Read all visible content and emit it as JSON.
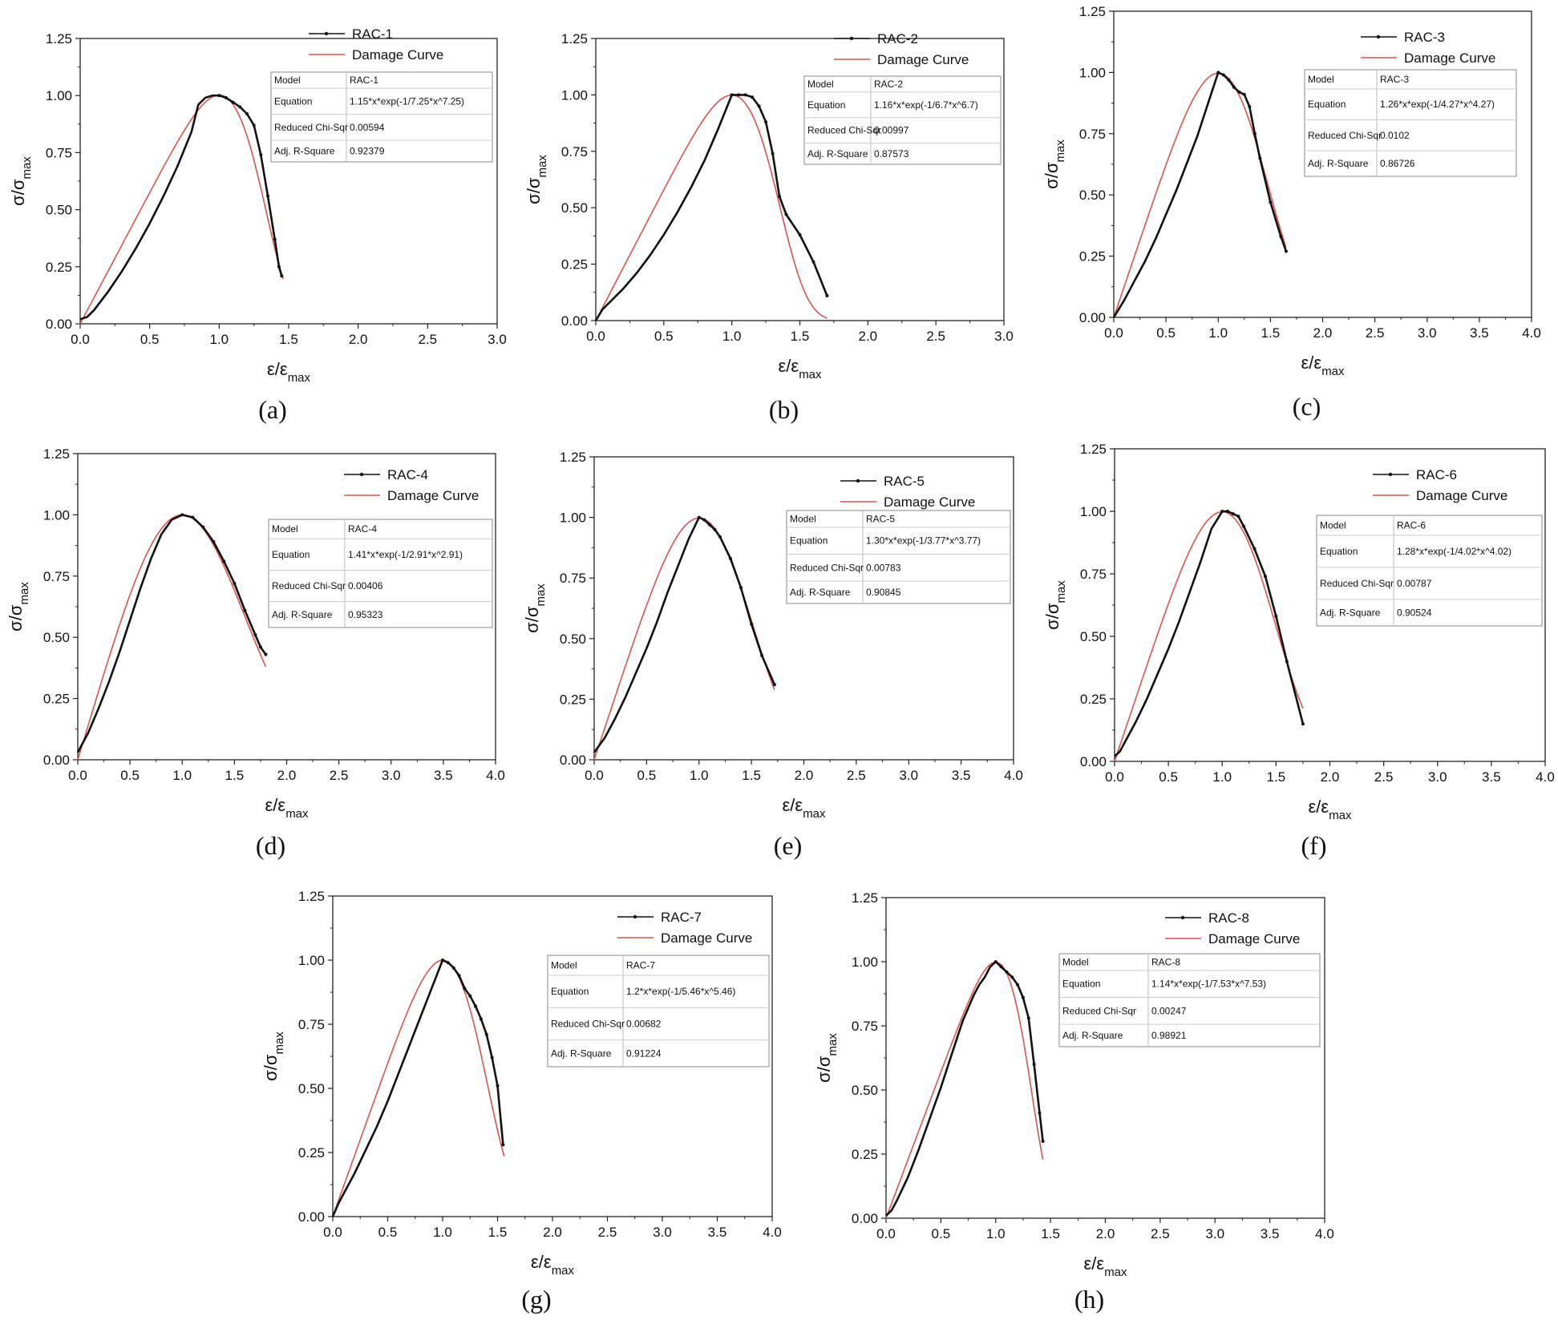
{
  "figure": {
    "x_axis_label": "ε/ε",
    "x_axis_sub": "max",
    "y_axis_label": "σ/σ",
    "y_axis_sub": "max",
    "table_row_labels": [
      "Model",
      "Equation",
      "Reduced Chi-Sqr",
      "Adj. R-Square"
    ],
    "colors": {
      "experimental": "#111111",
      "damage_curve": "#d9534f",
      "frame": "#222222",
      "table_border": "#888888"
    }
  },
  "chart_data": [
    {
      "type": "line",
      "caption": "(a)",
      "xlim": [
        0,
        3.0
      ],
      "xticks": [
        "0.0",
        "0.5",
        "1.0",
        "1.5",
        "2.0",
        "2.5",
        "3.0"
      ],
      "ylim": [
        0,
        1.25
      ],
      "yticks": [
        "0.00",
        "0.25",
        "0.50",
        "0.75",
        "1.00",
        "1.25"
      ],
      "legend": [
        "RAC-1",
        "Damage Curve"
      ],
      "stats": {
        "model": "RAC-1",
        "equation": "1.15*x*exp(-1/7.25*x^7.25)",
        "chi_sqr": "0.00594",
        "r_square": "0.92379"
      },
      "fit": {
        "a": 1.15,
        "b": 7.25,
        "x_max": 1.46
      },
      "series": [
        {
          "name": "RAC-1",
          "x": [
            0,
            0.05,
            0.1,
            0.2,
            0.3,
            0.4,
            0.5,
            0.6,
            0.7,
            0.8,
            0.85,
            0.9,
            0.95,
            1.0,
            1.05,
            1.1,
            1.15,
            1.2,
            1.25,
            1.3,
            1.35,
            1.4,
            1.43,
            1.45
          ],
          "y": [
            0.02,
            0.03,
            0.06,
            0.14,
            0.23,
            0.33,
            0.44,
            0.56,
            0.69,
            0.84,
            0.96,
            0.99,
            1.0,
            1.0,
            0.99,
            0.97,
            0.95,
            0.92,
            0.87,
            0.74,
            0.56,
            0.37,
            0.25,
            0.21
          ]
        }
      ]
    },
    {
      "type": "line",
      "caption": "(b)",
      "xlim": [
        0,
        3.0
      ],
      "xticks": [
        "0.0",
        "0.5",
        "1.0",
        "1.5",
        "2.0",
        "2.5",
        "3.0"
      ],
      "ylim": [
        0,
        1.25
      ],
      "yticks": [
        "0.00",
        "0.25",
        "0.50",
        "0.75",
        "1.00",
        "1.25"
      ],
      "legend": [
        "RAC-2",
        "Damage Curve"
      ],
      "stats": {
        "model": "RAC-2",
        "equation": "1.16*x*exp(-1/6.7*x^6.7)",
        "chi_sqr": "0.00997",
        "r_square": "0.87573"
      },
      "fit": {
        "a": 1.16,
        "b": 6.7,
        "x_max": 1.7
      },
      "series": [
        {
          "name": "RAC-2",
          "x": [
            0,
            0.05,
            0.1,
            0.2,
            0.3,
            0.4,
            0.5,
            0.6,
            0.7,
            0.8,
            0.9,
            1.0,
            1.05,
            1.1,
            1.15,
            1.2,
            1.25,
            1.3,
            1.35,
            1.4,
            1.5,
            1.6,
            1.7
          ],
          "y": [
            0,
            0.05,
            0.08,
            0.14,
            0.21,
            0.29,
            0.38,
            0.48,
            0.59,
            0.71,
            0.85,
            1.0,
            1.0,
            1.0,
            0.99,
            0.95,
            0.88,
            0.74,
            0.55,
            0.47,
            0.38,
            0.26,
            0.11
          ]
        }
      ]
    },
    {
      "type": "line",
      "caption": "(c)",
      "xlim": [
        0,
        4.0
      ],
      "xticks": [
        "0.0",
        "0.5",
        "1.0",
        "1.5",
        "2.0",
        "2.5",
        "3.0",
        "3.5",
        "4.0"
      ],
      "ylim": [
        0,
        1.25
      ],
      "yticks": [
        "0.00",
        "0.25",
        "0.50",
        "0.75",
        "1.00",
        "1.25"
      ],
      "legend": [
        "RAC-3",
        "Damage Curve"
      ],
      "stats": {
        "model": "RAC-3",
        "equation": "1.26*x*exp(-1/4.27*x^4.27)",
        "chi_sqr": "0.0102",
        "r_square": "0.86726"
      },
      "fit": {
        "a": 1.26,
        "b": 4.27,
        "x_max": 1.65
      },
      "series": [
        {
          "name": "RAC-3",
          "x": [
            0,
            0.1,
            0.2,
            0.3,
            0.4,
            0.5,
            0.6,
            0.7,
            0.8,
            0.9,
            1.0,
            1.05,
            1.1,
            1.15,
            1.2,
            1.25,
            1.3,
            1.35,
            1.4,
            1.5,
            1.6,
            1.65
          ],
          "y": [
            0,
            0.07,
            0.15,
            0.23,
            0.32,
            0.42,
            0.52,
            0.63,
            0.74,
            0.87,
            1.0,
            0.99,
            0.97,
            0.94,
            0.92,
            0.91,
            0.86,
            0.75,
            0.65,
            0.47,
            0.33,
            0.27
          ]
        }
      ]
    },
    {
      "type": "line",
      "caption": "(d)",
      "xlim": [
        0,
        4.0
      ],
      "xticks": [
        "0.0",
        "0.5",
        "1.0",
        "1.5",
        "2.0",
        "2.5",
        "3.0",
        "3.5",
        "4.0"
      ],
      "ylim": [
        0,
        1.25
      ],
      "yticks": [
        "0.00",
        "0.25",
        "0.50",
        "0.75",
        "1.00",
        "1.25"
      ],
      "legend": [
        "RAC-4",
        "Damage Curve"
      ],
      "stats": {
        "model": "RAC-4",
        "equation": "1.41*x*exp(-1/2.91*x^2.91)",
        "chi_sqr": "0.00406",
        "r_square": "0.95323"
      },
      "fit": {
        "a": 1.41,
        "b": 2.91,
        "x_max": 1.8
      },
      "series": [
        {
          "name": "RAC-4",
          "x": [
            0,
            0.1,
            0.2,
            0.3,
            0.4,
            0.5,
            0.6,
            0.7,
            0.8,
            0.9,
            1.0,
            1.1,
            1.2,
            1.3,
            1.4,
            1.5,
            1.6,
            1.7,
            1.75,
            1.8
          ],
          "y": [
            0.03,
            0.11,
            0.21,
            0.32,
            0.44,
            0.57,
            0.7,
            0.82,
            0.92,
            0.98,
            1.0,
            0.99,
            0.95,
            0.89,
            0.81,
            0.72,
            0.61,
            0.51,
            0.46,
            0.43
          ]
        }
      ]
    },
    {
      "type": "line",
      "caption": "(e)",
      "xlim": [
        0,
        4.0
      ],
      "xticks": [
        "0.0",
        "0.5",
        "1.0",
        "1.5",
        "2.0",
        "2.5",
        "3.0",
        "3.5",
        "4.0"
      ],
      "ylim": [
        0,
        1.25
      ],
      "yticks": [
        "0.00",
        "0.25",
        "0.50",
        "0.75",
        "1.00",
        "1.25"
      ],
      "legend": [
        "RAC-5",
        "Damage Curve"
      ],
      "stats": {
        "model": "RAC-5",
        "equation": "1.30*x*exp(-1/3.77*x^3.77)",
        "chi_sqr": "0.00783",
        "r_square": "0.90845"
      },
      "fit": {
        "a": 1.3,
        "b": 3.77,
        "x_max": 1.72
      },
      "series": [
        {
          "name": "RAC-5",
          "x": [
            0,
            0.1,
            0.2,
            0.3,
            0.4,
            0.5,
            0.6,
            0.7,
            0.8,
            0.9,
            1.0,
            1.05,
            1.1,
            1.15,
            1.2,
            1.3,
            1.4,
            1.5,
            1.6,
            1.72
          ],
          "y": [
            0.03,
            0.09,
            0.17,
            0.26,
            0.36,
            0.46,
            0.57,
            0.69,
            0.8,
            0.91,
            1.0,
            0.99,
            0.97,
            0.95,
            0.92,
            0.83,
            0.71,
            0.56,
            0.43,
            0.31
          ]
        }
      ]
    },
    {
      "type": "line",
      "caption": "(f)",
      "xlim": [
        0,
        4.0
      ],
      "xticks": [
        "0.0",
        "0.5",
        "1.0",
        "1.5",
        "2.0",
        "2.5",
        "3.0",
        "3.5",
        "4.0"
      ],
      "ylim": [
        0,
        1.25
      ],
      "yticks": [
        "0.00",
        "0.25",
        "0.50",
        "0.75",
        "1.00",
        "1.25"
      ],
      "legend": [
        "RAC-6",
        "Damage Curve"
      ],
      "stats": {
        "model": "RAC-6",
        "equation": "1.28*x*exp(-1/4.02*x^4.02)",
        "chi_sqr": "0.00787",
        "r_square": "0.90524"
      },
      "fit": {
        "a": 1.28,
        "b": 4.02,
        "x_max": 1.75
      },
      "series": [
        {
          "name": "RAC-6",
          "x": [
            0,
            0.05,
            0.1,
            0.2,
            0.3,
            0.4,
            0.5,
            0.6,
            0.7,
            0.8,
            0.9,
            1.0,
            1.05,
            1.1,
            1.15,
            1.2,
            1.3,
            1.4,
            1.5,
            1.6,
            1.75
          ],
          "y": [
            0.02,
            0.04,
            0.08,
            0.16,
            0.25,
            0.35,
            0.45,
            0.56,
            0.68,
            0.8,
            0.93,
            1.0,
            1.0,
            0.99,
            0.98,
            0.94,
            0.85,
            0.74,
            0.58,
            0.4,
            0.15
          ]
        }
      ]
    },
    {
      "type": "line",
      "caption": "(g)",
      "xlim": [
        0,
        4.0
      ],
      "xticks": [
        "0.0",
        "0.5",
        "1.0",
        "1.5",
        "2.0",
        "2.5",
        "3.0",
        "3.5",
        "4.0"
      ],
      "ylim": [
        0,
        1.25
      ],
      "yticks": [
        "0.00",
        "0.25",
        "0.50",
        "0.75",
        "1.00",
        "1.25"
      ],
      "legend": [
        "RAC-7",
        "Damage Curve"
      ],
      "stats": {
        "model": "RAC-7",
        "equation": "1.2*x*exp(-1/5.46*x^5.46)",
        "chi_sqr": "0.00682",
        "r_square": "0.91224"
      },
      "fit": {
        "a": 1.2,
        "b": 5.46,
        "x_max": 1.56
      },
      "series": [
        {
          "name": "RAC-7",
          "x": [
            0,
            0.05,
            0.1,
            0.2,
            0.3,
            0.4,
            0.5,
            0.6,
            0.7,
            0.8,
            0.9,
            1.0,
            1.05,
            1.1,
            1.15,
            1.2,
            1.25,
            1.3,
            1.35,
            1.4,
            1.45,
            1.5,
            1.55
          ],
          "y": [
            0,
            0.05,
            0.09,
            0.17,
            0.26,
            0.35,
            0.45,
            0.56,
            0.67,
            0.78,
            0.89,
            1.0,
            0.99,
            0.97,
            0.94,
            0.89,
            0.86,
            0.82,
            0.77,
            0.71,
            0.62,
            0.51,
            0.28
          ]
        }
      ]
    },
    {
      "type": "line",
      "caption": "(h)",
      "xlim": [
        0,
        4.0
      ],
      "xticks": [
        "0.0",
        "0.5",
        "1.0",
        "1.5",
        "2.0",
        "2.5",
        "3.0",
        "3.5",
        "4.0"
      ],
      "ylim": [
        0,
        1.25
      ],
      "yticks": [
        "0.00",
        "0.25",
        "0.50",
        "0.75",
        "1.00",
        "1.25"
      ],
      "legend": [
        "RAC-8",
        "Damage Curve"
      ],
      "stats": {
        "model": "RAC-8",
        "equation": "1.14*x*exp(-1/7.53*x^7.53)",
        "chi_sqr": "0.00247",
        "r_square": "0.98921"
      },
      "fit": {
        "a": 1.14,
        "b": 7.53,
        "x_max": 1.43
      },
      "series": [
        {
          "name": "RAC-8",
          "x": [
            0,
            0.05,
            0.1,
            0.2,
            0.3,
            0.4,
            0.5,
            0.6,
            0.7,
            0.8,
            0.85,
            0.9,
            0.95,
            1.0,
            1.05,
            1.1,
            1.15,
            1.2,
            1.25,
            1.3,
            1.35,
            1.4,
            1.43
          ],
          "y": [
            0.01,
            0.03,
            0.07,
            0.16,
            0.27,
            0.39,
            0.51,
            0.64,
            0.77,
            0.87,
            0.91,
            0.94,
            0.98,
            1.0,
            0.98,
            0.96,
            0.94,
            0.91,
            0.86,
            0.78,
            0.6,
            0.41,
            0.3
          ]
        }
      ]
    }
  ]
}
